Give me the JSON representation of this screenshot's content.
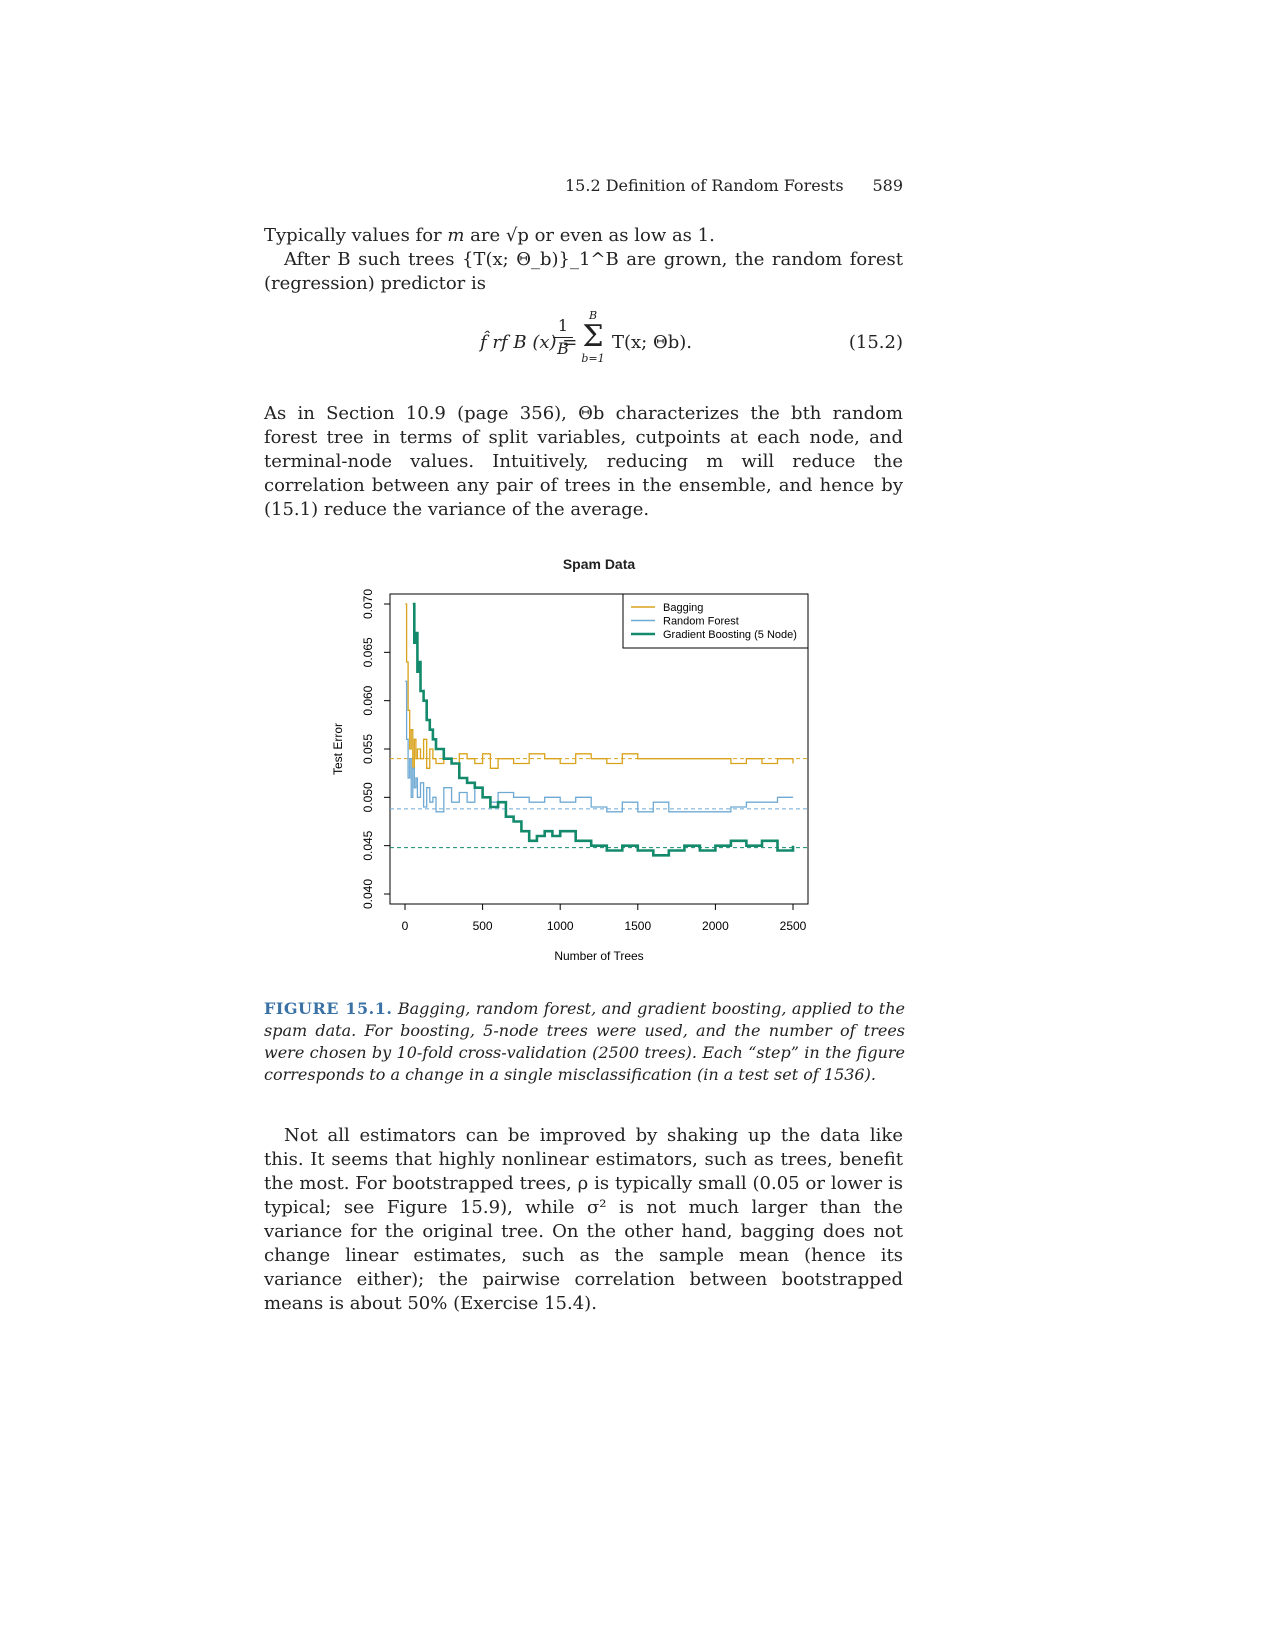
{
  "header": {
    "section_title": "15.2 Definition of Random Forests",
    "page_number": "589"
  },
  "para1": {
    "l1a": "Typically values for ",
    "m": "m",
    "l1b": " are √p or even as low as 1."
  },
  "para2": {
    "text": "After B such trees {T(x; Θ_b)}_1^B are grown, the random forest (regression) predictor is"
  },
  "equation": {
    "lhs": "f̂ rf B (x) =",
    "frac_num": "1",
    "frac_den": "B",
    "sum_upper": "B",
    "sum_lower": "b=1",
    "rhs": "T(x; Θb).",
    "number": "(15.2)"
  },
  "para3": {
    "text": "As in Section 10.9 (page 356), Θb characterizes the bth random forest tree in terms of split variables, cutpoints at each node, and terminal-node values. Intuitively, reducing m will reduce the correlation between any pair of trees in the ensemble, and hence by (15.1) reduce the variance of the average."
  },
  "chart_data": {
    "type": "line",
    "title": "Spam Data",
    "xlabel": "Number of Trees",
    "ylabel": "Test Error",
    "xlim": [
      0,
      2500
    ],
    "ylim": [
      0.04,
      0.07
    ],
    "x_ticks": [
      "0",
      "500",
      "1000",
      "1500",
      "2000",
      "2500"
    ],
    "y_ticks": [
      "0.040",
      "0.045",
      "0.050",
      "0.055",
      "0.060",
      "0.065",
      "0.070"
    ],
    "legend_position": "top-right",
    "series": [
      {
        "name": "Bagging",
        "color": "#d9a21b",
        "asymptote": 0.054,
        "x": [
          1,
          10,
          20,
          30,
          40,
          50,
          60,
          70,
          80,
          100,
          120,
          140,
          160,
          180,
          200,
          250,
          300,
          350,
          400,
          450,
          500,
          550,
          600,
          700,
          800,
          900,
          1000,
          1100,
          1200,
          1300,
          1400,
          1500,
          1600,
          1700,
          1800,
          1900,
          2000,
          2100,
          2200,
          2300,
          2400,
          2500
        ],
        "y": [
          0.07,
          0.064,
          0.059,
          0.055,
          0.057,
          0.053,
          0.056,
          0.054,
          0.055,
          0.054,
          0.056,
          0.053,
          0.055,
          0.054,
          0.0535,
          0.054,
          0.0535,
          0.0545,
          0.054,
          0.0535,
          0.0545,
          0.053,
          0.054,
          0.0535,
          0.0545,
          0.054,
          0.0535,
          0.0545,
          0.054,
          0.0535,
          0.0545,
          0.054,
          0.054,
          0.054,
          0.054,
          0.054,
          0.054,
          0.0535,
          0.054,
          0.0535,
          0.054,
          0.0535
        ]
      },
      {
        "name": "Random Forest",
        "color": "#6ea9d4",
        "asymptote": 0.0488,
        "x": [
          1,
          10,
          20,
          30,
          40,
          50,
          60,
          70,
          80,
          100,
          120,
          140,
          160,
          180,
          200,
          250,
          300,
          350,
          400,
          450,
          500,
          550,
          600,
          700,
          800,
          900,
          1000,
          1100,
          1200,
          1300,
          1400,
          1500,
          1600,
          1700,
          1800,
          1900,
          2000,
          2100,
          2200,
          2300,
          2400,
          2500
        ],
        "y": [
          0.062,
          0.056,
          0.052,
          0.054,
          0.05,
          0.053,
          0.051,
          0.052,
          0.05,
          0.0515,
          0.049,
          0.051,
          0.0495,
          0.05,
          0.0485,
          0.051,
          0.0495,
          0.0505,
          0.0495,
          0.051,
          0.05,
          0.0495,
          0.0505,
          0.05,
          0.0495,
          0.05,
          0.0495,
          0.05,
          0.049,
          0.0485,
          0.0495,
          0.0485,
          0.0495,
          0.0485,
          0.0485,
          0.0485,
          0.0485,
          0.049,
          0.0495,
          0.0495,
          0.05,
          0.05
        ]
      },
      {
        "name": "Gradient Boosting (5 Node)",
        "color": "#138a6b",
        "asymptote": 0.0448,
        "x": [
          50,
          60,
          70,
          80,
          90,
          100,
          120,
          140,
          160,
          180,
          200,
          250,
          300,
          350,
          400,
          450,
          500,
          550,
          600,
          650,
          700,
          750,
          800,
          850,
          900,
          950,
          1000,
          1100,
          1200,
          1300,
          1400,
          1500,
          1600,
          1700,
          1800,
          1900,
          2000,
          2100,
          2200,
          2300,
          2400,
          2500
        ],
        "y": [
          0.07,
          0.066,
          0.067,
          0.063,
          0.064,
          0.061,
          0.06,
          0.058,
          0.057,
          0.056,
          0.055,
          0.054,
          0.0535,
          0.052,
          0.0515,
          0.051,
          0.05,
          0.049,
          0.0495,
          0.048,
          0.0475,
          0.0465,
          0.0455,
          0.046,
          0.0465,
          0.046,
          0.0465,
          0.0455,
          0.045,
          0.0445,
          0.045,
          0.0445,
          0.044,
          0.0445,
          0.045,
          0.0445,
          0.045,
          0.0455,
          0.045,
          0.0455,
          0.0445,
          0.045
        ]
      }
    ]
  },
  "caption": {
    "label": "FIGURE 15.1.",
    "text": "Bagging, random forest, and gradient boosting, applied to the spam data. For boosting, 5-node trees were used, and the number of trees were chosen by 10-fold cross-validation (2500 trees). Each “step” in the figure corresponds to a change in a single misclassification (in a test set of 1536)."
  },
  "para4": {
    "text": "Not all estimators can be improved by shaking up the data like this. It seems that highly nonlinear estimators, such as trees, benefit the most. For bootstrapped trees, ρ is typically small (0.05 or lower is typical; see Figure 15.9), while σ² is not much larger than the variance for the original tree. On the other hand, bagging does not change linear estimates, such as the sample mean (hence its variance either); the pairwise correlation between bootstrapped means is about 50% (Exercise 15.4)."
  }
}
